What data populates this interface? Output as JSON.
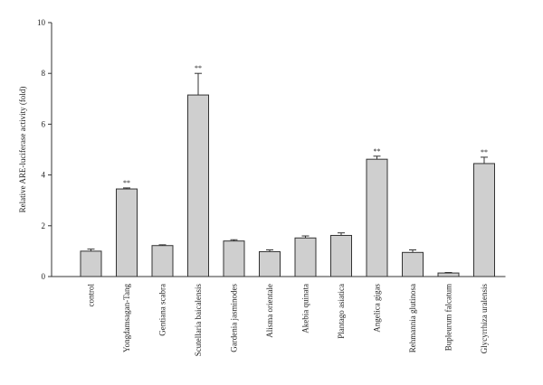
{
  "chart_data": {
    "type": "bar",
    "title": "",
    "xlabel": "",
    "ylabel": "Relative ARE-luciferase activity (fold)",
    "ylim": [
      0,
      10
    ],
    "yticks": [
      0,
      2,
      4,
      6,
      8,
      10
    ],
    "grid": false,
    "legend": "none",
    "bar_color": "#cfcfcf",
    "categories": [
      "control",
      "Yongdamsagan-Tang",
      "Gentiana scabra",
      "Scutellaria baicalensis",
      "Gardenia jasminodes",
      "Alisma orientale",
      "Akebia quinata",
      "Plantago asiatica",
      "Angelica gigas",
      "Rehmannia glutinosa",
      "Bupleurum falcatum",
      "Glycyrrhiza uralensis"
    ],
    "values": [
      1.0,
      3.45,
      1.22,
      7.15,
      1.4,
      0.98,
      1.52,
      1.62,
      4.62,
      0.95,
      0.14,
      4.45
    ],
    "errors": [
      0.08,
      0.04,
      0.03,
      0.85,
      0.05,
      0.07,
      0.08,
      0.1,
      0.12,
      0.1,
      0.02,
      0.25
    ],
    "annotations": [
      "",
      "**",
      "",
      "**",
      "",
      "",
      "",
      "",
      "**",
      "",
      "",
      "**"
    ]
  }
}
